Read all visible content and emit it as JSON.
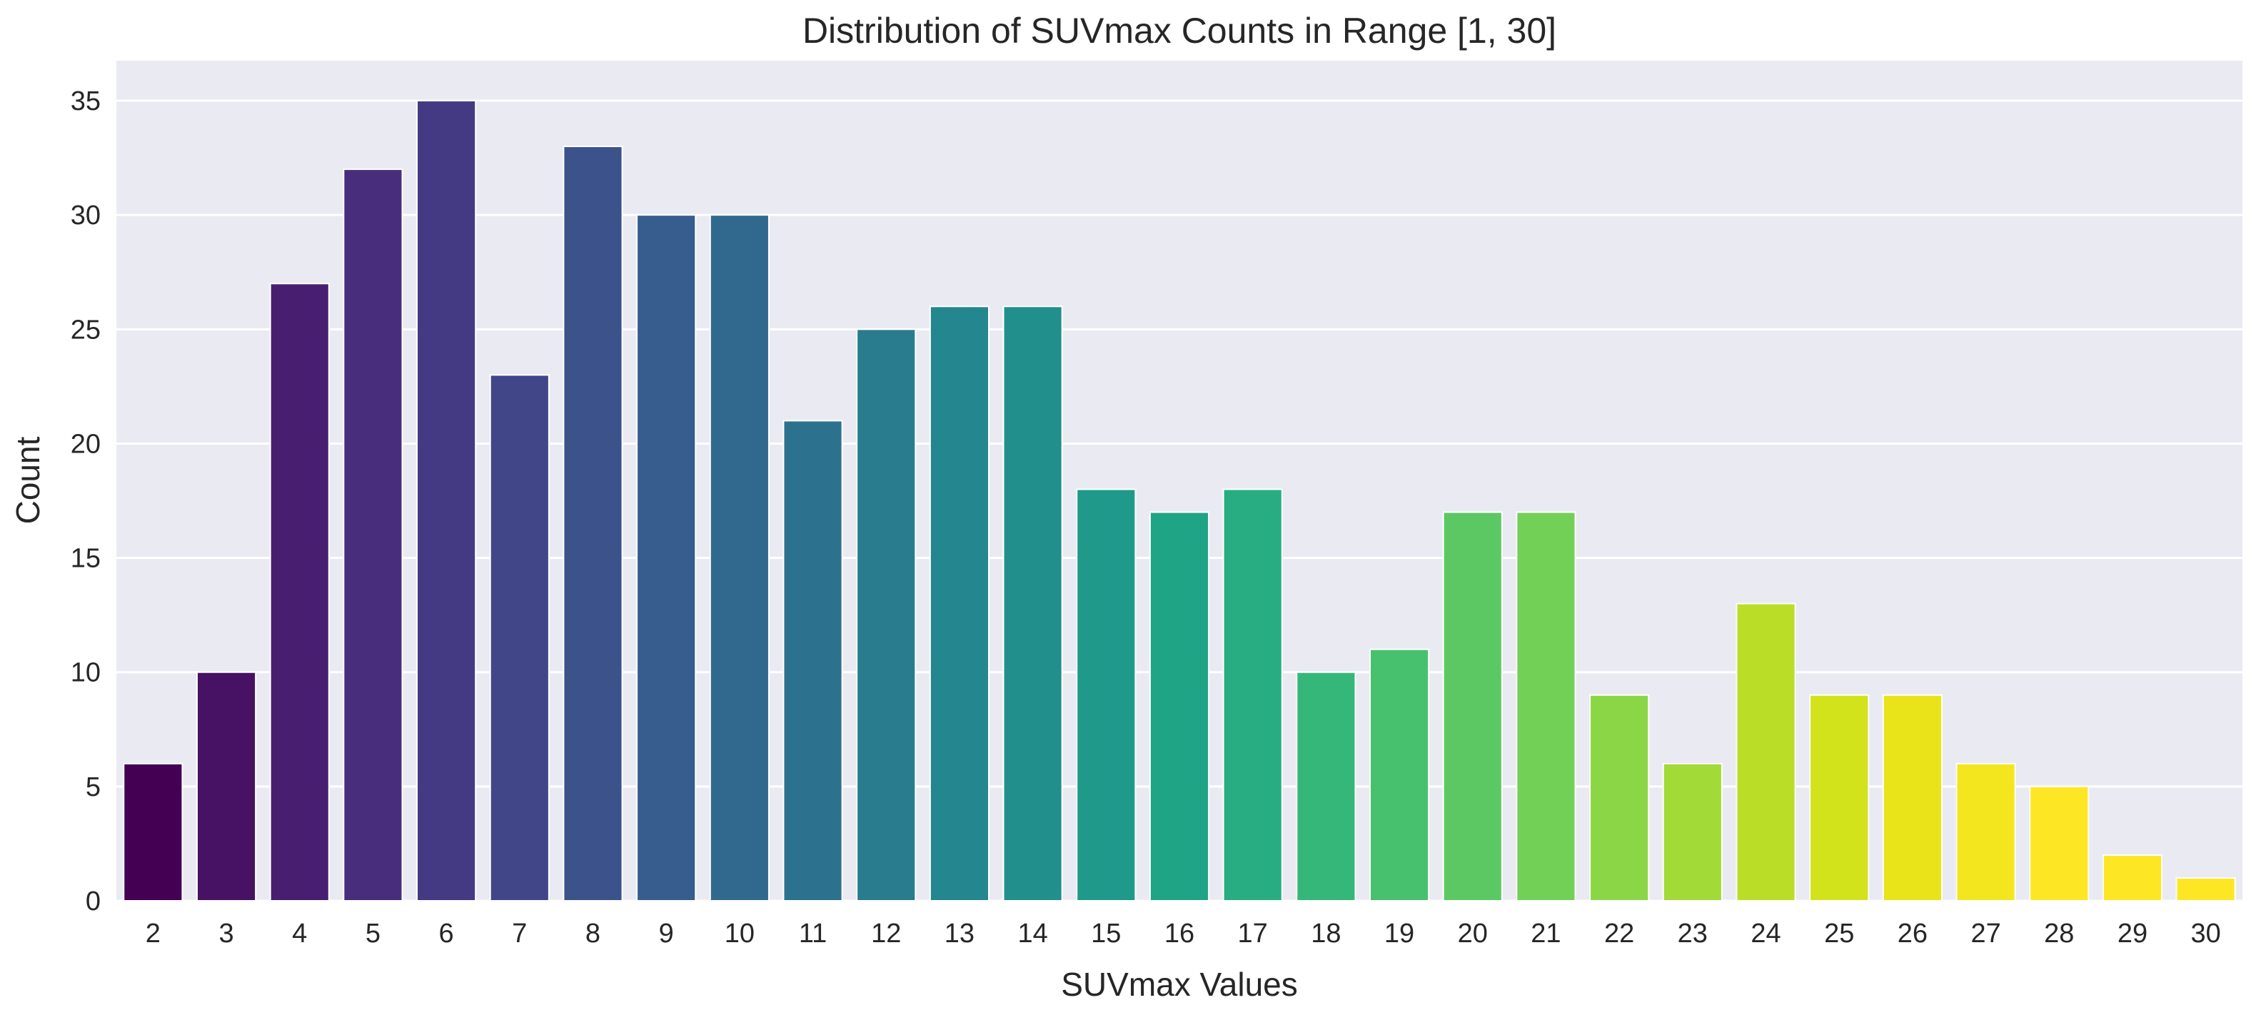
{
  "chart_data": {
    "type": "bar",
    "title": "Distribution of SUVmax Counts in Range [1, 30]",
    "xlabel": "SUVmax Values",
    "ylabel": "Count",
    "ylim": [
      0,
      36.75
    ],
    "yticks": [
      0,
      5,
      10,
      15,
      20,
      25,
      30,
      35
    ],
    "grid": true,
    "categories": [
      "2",
      "3",
      "4",
      "5",
      "6",
      "7",
      "8",
      "9",
      "10",
      "11",
      "12",
      "13",
      "14",
      "15",
      "16",
      "17",
      "18",
      "19",
      "20",
      "21",
      "22",
      "23",
      "24",
      "25",
      "26",
      "27",
      "28",
      "29",
      "30"
    ],
    "values": [
      6,
      10,
      27,
      32,
      35,
      23,
      33,
      30,
      30,
      21,
      25,
      26,
      26,
      18,
      17,
      18,
      10,
      11,
      17,
      17,
      9,
      6,
      13,
      9,
      9,
      6,
      5,
      2,
      1
    ],
    "colors": [
      "#440154",
      "#471164",
      "#481f70",
      "#472d7b",
      "#443a83",
      "#404688",
      "#3b528b",
      "#365d8d",
      "#31688e",
      "#2c728e",
      "#287c8e",
      "#24868e",
      "#21908d",
      "#1f9a8a",
      "#20a486",
      "#27ad81",
      "#35b779",
      "#47c16e",
      "#5cc863",
      "#73d056",
      "#8bd646",
      "#a2da37",
      "#bade28",
      "#d2e21b",
      "#e8e419",
      "#f4e61e",
      "#fde725",
      "#fde725",
      "#fde725"
    ],
    "plot_background": "#eaeaf2"
  }
}
